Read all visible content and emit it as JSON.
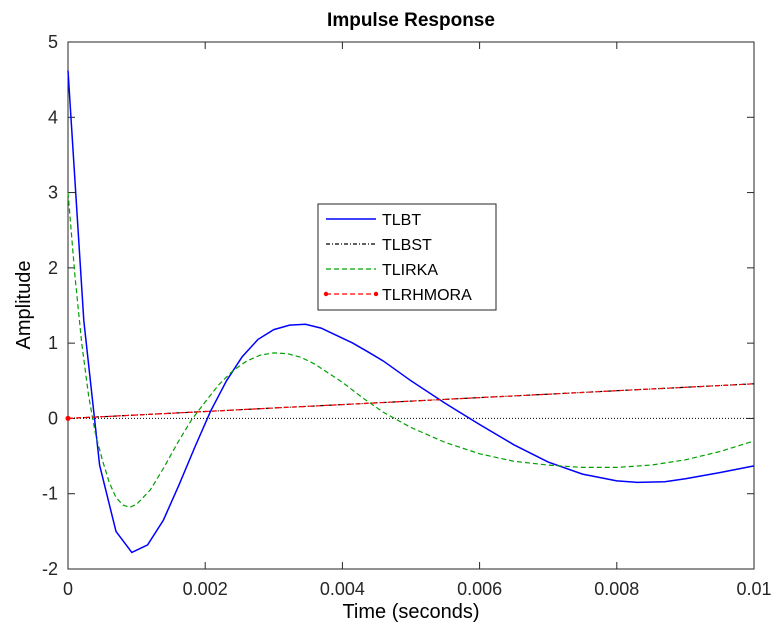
{
  "chart_data": {
    "type": "line",
    "title": "Impulse Response",
    "xlabel": "Time (seconds)",
    "ylabel": "Amplitude",
    "xlim": [
      0,
      0.01
    ],
    "ylim": [
      -2,
      5
    ],
    "xticks": [
      0,
      0.002,
      0.004,
      0.006,
      0.008,
      0.01
    ],
    "xtick_labels": [
      "0",
      "0.002",
      "0.004",
      "0.006",
      "0.008",
      "0.01"
    ],
    "yticks": [
      -2,
      -1,
      0,
      1,
      2,
      3,
      4,
      5
    ],
    "ytick_labels": [
      "-2",
      "-1",
      "0",
      "1",
      "2",
      "3",
      "4",
      "5"
    ],
    "grid": false,
    "legend_position": "center",
    "zero_line": true,
    "series": [
      {
        "name": "TLBT",
        "color": "#0000ff",
        "style": "solid",
        "x": [
          0,
          0.00023,
          0.00046,
          0.0007,
          0.00093,
          0.00116,
          0.00139,
          0.00162,
          0.00185,
          0.00208,
          0.00231,
          0.00254,
          0.00277,
          0.003,
          0.00323,
          0.00346,
          0.00369,
          0.00392,
          0.00415,
          0.00438,
          0.0046,
          0.005,
          0.0055,
          0.006,
          0.0065,
          0.007,
          0.0075,
          0.008,
          0.0083,
          0.0087,
          0.009,
          0.0095,
          0.01
        ],
        "y": [
          4.62,
          1.3,
          -0.62,
          -1.5,
          -1.78,
          -1.68,
          -1.35,
          -0.88,
          -0.38,
          0.1,
          0.5,
          0.82,
          1.05,
          1.18,
          1.24,
          1.25,
          1.2,
          1.1,
          1.0,
          0.88,
          0.76,
          0.5,
          0.2,
          -0.08,
          -0.35,
          -0.58,
          -0.74,
          -0.83,
          -0.85,
          -0.84,
          -0.8,
          -0.72,
          -0.63
        ]
      },
      {
        "name": "TLBST",
        "color": "#000000",
        "style": "dashdot",
        "x": [
          0,
          0.001,
          0.002,
          0.003,
          0.004,
          0.005,
          0.006,
          0.007,
          0.008,
          0.009,
          0.01
        ],
        "y": [
          0.0,
          0.046,
          0.092,
          0.138,
          0.184,
          0.23,
          0.276,
          0.322,
          0.368,
          0.414,
          0.46
        ]
      },
      {
        "name": "TLIRKA",
        "color": "#00a000",
        "style": "dashed",
        "x": [
          0,
          0.0001,
          0.0002,
          0.0003,
          0.0004,
          0.0005,
          0.0006,
          0.0007,
          0.0008,
          0.0009,
          0.001,
          0.0012,
          0.0014,
          0.0016,
          0.0018,
          0.002,
          0.0022,
          0.0024,
          0.0026,
          0.0028,
          0.003,
          0.0032,
          0.0034,
          0.0036,
          0.0038,
          0.004,
          0.0043,
          0.0046,
          0.005,
          0.0055,
          0.006,
          0.0065,
          0.007,
          0.0075,
          0.008,
          0.0085,
          0.009,
          0.0095,
          0.01
        ],
        "y": [
          3.0,
          1.9,
          1.0,
          0.3,
          -0.2,
          -0.55,
          -0.85,
          -1.05,
          -1.15,
          -1.18,
          -1.14,
          -0.95,
          -0.65,
          -0.32,
          -0.02,
          0.22,
          0.45,
          0.63,
          0.76,
          0.84,
          0.87,
          0.86,
          0.81,
          0.72,
          0.6,
          0.48,
          0.27,
          0.08,
          -0.12,
          -0.32,
          -0.47,
          -0.57,
          -0.62,
          -0.65,
          -0.65,
          -0.62,
          -0.55,
          -0.44,
          -0.3
        ]
      },
      {
        "name": "TLRHMORA",
        "color": "#ff0000",
        "style": "dashed-dot-marker",
        "x": [
          0,
          0.001,
          0.002,
          0.003,
          0.004,
          0.005,
          0.006,
          0.007,
          0.008,
          0.009,
          0.01
        ],
        "y": [
          0.0,
          0.046,
          0.092,
          0.138,
          0.184,
          0.23,
          0.276,
          0.322,
          0.368,
          0.414,
          0.46
        ]
      }
    ]
  }
}
